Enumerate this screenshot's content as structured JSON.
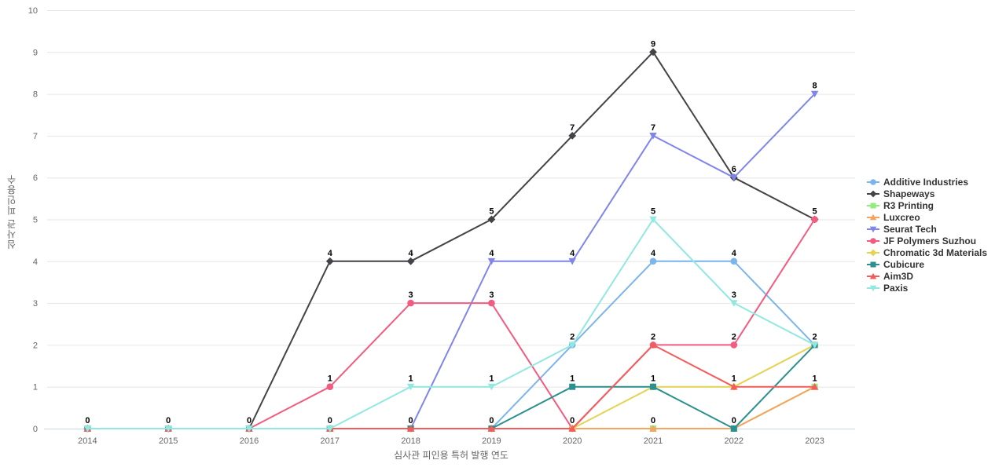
{
  "chart_data": {
    "type": "line",
    "xlabel": "심사관 피인용 특허 발행 연도",
    "ylabel": "심사관 피인용수",
    "x": [
      "2014",
      "2015",
      "2016",
      "2017",
      "2018",
      "2019",
      "2020",
      "2021",
      "2022",
      "2023"
    ],
    "ylim": [
      0,
      10
    ],
    "yticks": [
      0,
      1,
      2,
      3,
      4,
      5,
      6,
      7,
      8,
      9,
      10
    ],
    "grid": "horizontal",
    "legend_position": "right",
    "background_color": "#ffffff",
    "grid_color": "#e6e6e6",
    "axis_line_color": "#ccd6eb",
    "tick_label_color": "#666666",
    "axis_title_color": "#666666",
    "data_label_color": "#000000",
    "legend_text_color": "#333333",
    "series": [
      {
        "name": "Additive Industries",
        "color": "#7cb5ec",
        "symbol": "circle",
        "values": [
          0,
          0,
          0,
          0,
          0,
          0,
          2,
          4,
          4,
          2
        ]
      },
      {
        "name": "Shapeways",
        "color": "#434348",
        "symbol": "diamond",
        "values": [
          0,
          0,
          0,
          4,
          4,
          5,
          7,
          9,
          6,
          5
        ]
      },
      {
        "name": "R3 Printing",
        "color": "#90ed7d",
        "symbol": "square",
        "values": [
          0,
          0,
          0,
          0,
          0,
          0,
          0,
          0,
          0,
          1
        ]
      },
      {
        "name": "Luxcreo",
        "color": "#f7a35c",
        "symbol": "triangle",
        "values": [
          0,
          0,
          0,
          0,
          0,
          0,
          0,
          0,
          0,
          1
        ]
      },
      {
        "name": "Seurat Tech",
        "color": "#8085e9",
        "symbol": "triangle-down",
        "values": [
          0,
          0,
          0,
          0,
          0,
          4,
          4,
          7,
          6,
          8
        ]
      },
      {
        "name": "JF Polymers Suzhou",
        "color": "#f15c80",
        "symbol": "circle",
        "values": [
          0,
          0,
          0,
          1,
          3,
          3,
          0,
          2,
          2,
          5
        ]
      },
      {
        "name": "Chromatic 3d Materials",
        "color": "#e4d354",
        "symbol": "diamond",
        "values": [
          0,
          0,
          0,
          0,
          0,
          0,
          0,
          1,
          1,
          2
        ]
      },
      {
        "name": "Cubicure",
        "color": "#2b908f",
        "symbol": "square",
        "values": [
          0,
          0,
          0,
          0,
          0,
          0,
          1,
          1,
          0,
          2
        ]
      },
      {
        "name": "Aim3D",
        "color": "#f45b5b",
        "symbol": "triangle",
        "values": [
          0,
          0,
          0,
          0,
          0,
          0,
          0,
          2,
          1,
          1
        ]
      },
      {
        "name": "Paxis",
        "color": "#91e8e1",
        "symbol": "triangle-down",
        "values": [
          0,
          0,
          0,
          0,
          1,
          1,
          2,
          5,
          3,
          2
        ]
      }
    ]
  }
}
